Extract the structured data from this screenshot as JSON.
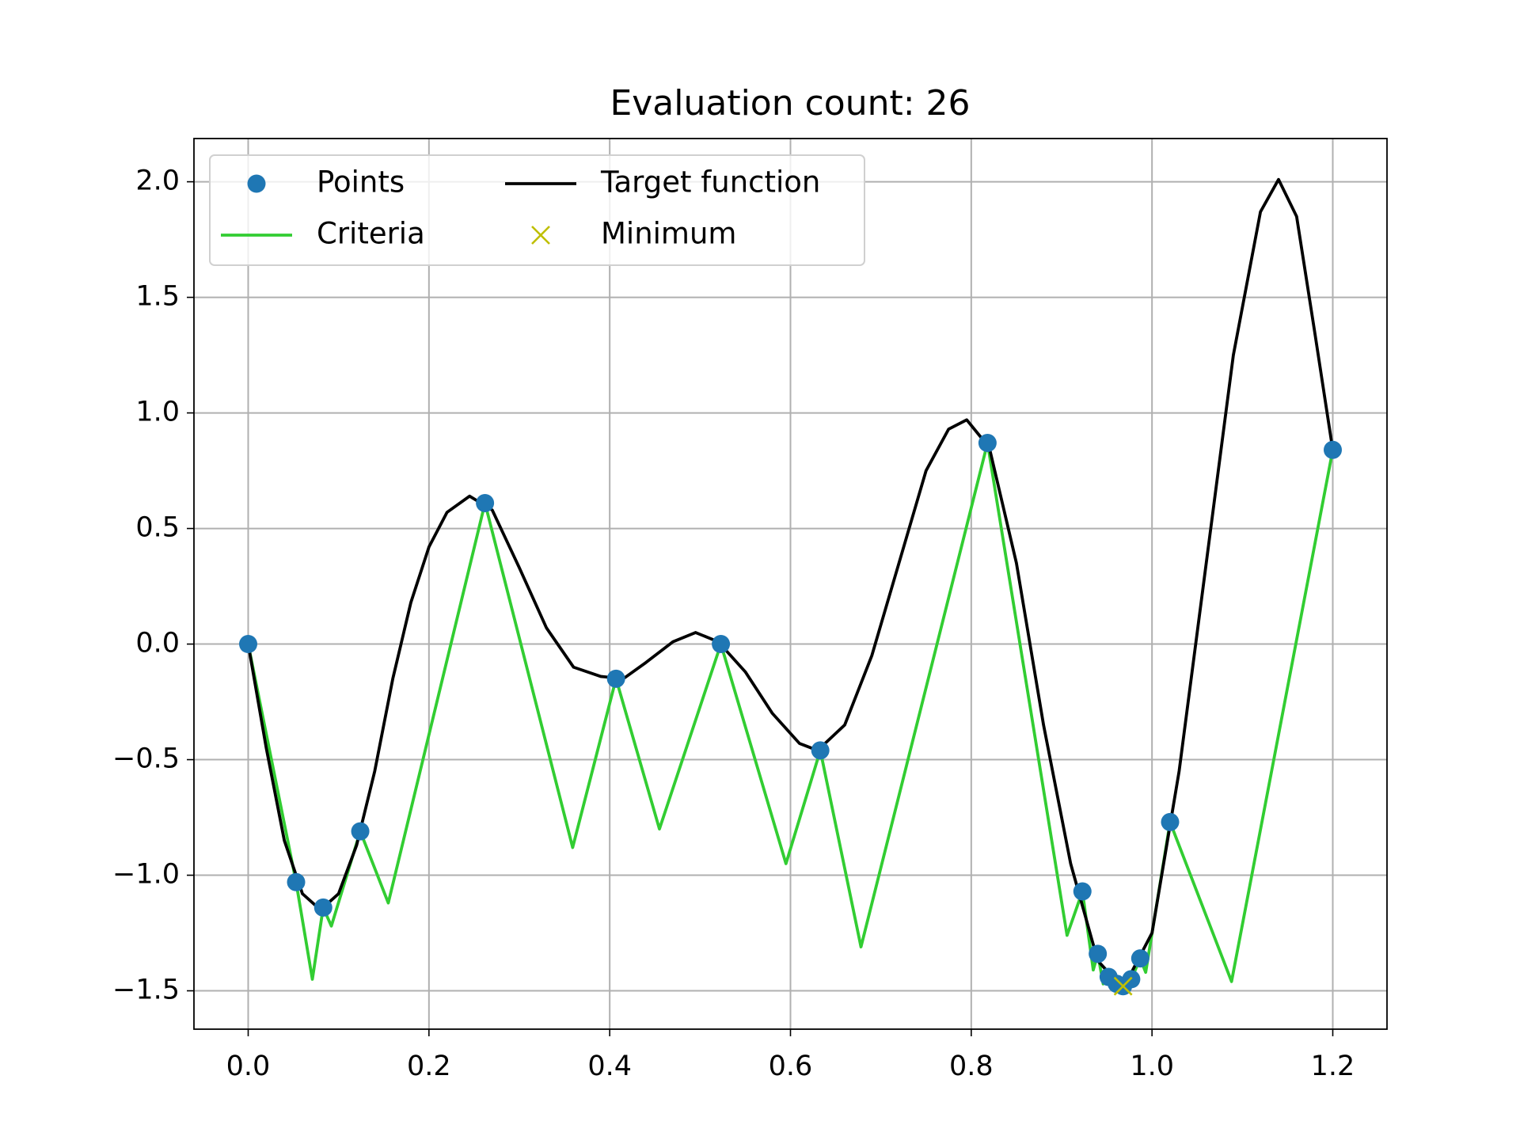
{
  "chart_data": {
    "type": "line",
    "title": "Evaluation count: 26",
    "xlim": [
      -0.06,
      1.26
    ],
    "ylim": [
      -1.666,
      2.187
    ],
    "xticks": [
      {
        "value": 0,
        "label": "0.0"
      },
      {
        "value": 0.2,
        "label": "0.2"
      },
      {
        "value": 0.4,
        "label": "0.4"
      },
      {
        "value": 0.6,
        "label": "0.6"
      },
      {
        "value": 0.8,
        "label": "0.8"
      },
      {
        "value": 1.0,
        "label": "1.0"
      },
      {
        "value": 1.2,
        "label": "1.2"
      }
    ],
    "yticks": [
      {
        "value": -1.5,
        "label": "−1.5"
      },
      {
        "value": -1.0,
        "label": "−1.0"
      },
      {
        "value": -0.5,
        "label": "−0.5"
      },
      {
        "value": 0,
        "label": "0.0"
      },
      {
        "value": 0.5,
        "label": "0.5"
      },
      {
        "value": 1.0,
        "label": "1.0"
      },
      {
        "value": 1.5,
        "label": "1.5"
      },
      {
        "value": 2.0,
        "label": "2.0"
      }
    ],
    "grid": true,
    "legend": "upper left",
    "legend_columns": 2,
    "series": [
      {
        "name": "Points",
        "color": "#1f77b4",
        "style": "dot",
        "x": [
          0,
          0.053,
          0.083,
          0.124,
          0.262,
          0.407,
          0.523,
          0.633,
          0.818,
          0.923,
          0.94,
          0.952,
          0.961,
          0.968,
          0.977,
          0.987,
          1.02,
          1.2
        ],
        "values": [
          0,
          -1.03,
          -1.14,
          -0.81,
          0.61,
          -0.15,
          0.0,
          -0.46,
          0.87,
          -1.07,
          -1.34,
          -1.44,
          -1.47,
          -1.48,
          -1.45,
          -1.36,
          -0.77,
          0.84
        ]
      },
      {
        "name": "Criteria",
        "color": "#32cd32",
        "style": "line",
        "x": [
          0,
          0.053,
          0.071,
          0.083,
          0.092,
          0.124,
          0.155,
          0.262,
          0.359,
          0.407,
          0.455,
          0.523,
          0.595,
          0.633,
          0.678,
          0.818,
          0.906,
          0.923,
          0.935,
          0.94,
          0.946,
          0.952,
          0.961,
          0.968,
          0.977,
          0.987,
          0.993,
          1.02,
          1.088,
          1.2
        ],
        "values": [
          0,
          -1.03,
          -1.45,
          -1.14,
          -1.22,
          -0.81,
          -1.12,
          0.61,
          -0.88,
          -0.15,
          -0.8,
          0.0,
          -0.95,
          -0.46,
          -1.31,
          0.87,
          -1.26,
          -1.07,
          -1.41,
          -1.34,
          -1.47,
          -1.44,
          -1.48,
          -1.48,
          -1.45,
          -1.36,
          -1.42,
          -0.77,
          -1.46,
          0.84
        ]
      },
      {
        "name": "Target function",
        "color": "#000000",
        "style": "line",
        "x": [
          0,
          0.02,
          0.04,
          0.06,
          0.08,
          0.1,
          0.12,
          0.14,
          0.16,
          0.18,
          0.2,
          0.22,
          0.245,
          0.27,
          0.3,
          0.33,
          0.36,
          0.39,
          0.415,
          0.44,
          0.47,
          0.495,
          0.52,
          0.55,
          0.58,
          0.61,
          0.63,
          0.66,
          0.69,
          0.72,
          0.75,
          0.775,
          0.795,
          0.82,
          0.85,
          0.88,
          0.91,
          0.94,
          0.968,
          1.0,
          1.03,
          1.06,
          1.09,
          1.12,
          1.14,
          1.16,
          1.18,
          1.2
        ],
        "values": [
          0,
          -0.45,
          -0.85,
          -1.08,
          -1.15,
          -1.08,
          -0.87,
          -0.55,
          -0.15,
          0.18,
          0.42,
          0.57,
          0.64,
          0.58,
          0.33,
          0.07,
          -0.1,
          -0.14,
          -0.15,
          -0.08,
          0.01,
          0.05,
          0.01,
          -0.12,
          -0.3,
          -0.43,
          -0.46,
          -0.35,
          -0.05,
          0.35,
          0.75,
          0.93,
          0.97,
          0.85,
          0.35,
          -0.35,
          -0.95,
          -1.37,
          -1.49,
          -1.25,
          -0.55,
          0.35,
          1.25,
          1.87,
          2.01,
          1.85,
          1.35,
          0.84
        ]
      },
      {
        "name": "Minimum",
        "color": "#bfbf00",
        "style": "cross",
        "x": [
          0.968
        ],
        "values": [
          -1.48
        ]
      }
    ]
  }
}
